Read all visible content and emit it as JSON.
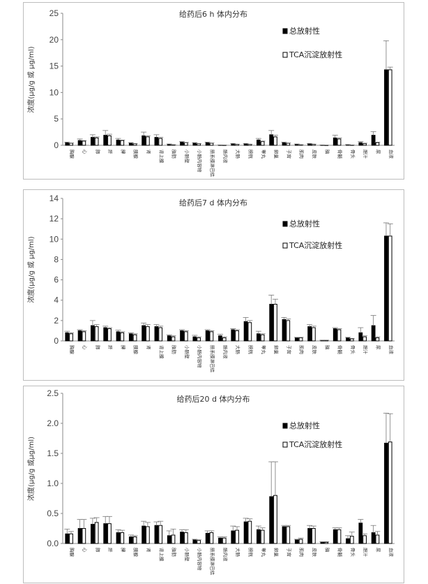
{
  "chart_data": [
    {
      "type": "bar",
      "title": "给药后6 h 体内分布",
      "ylabel": "浓度(μg/g 或 μg/ml)",
      "ylim": [
        0,
        25
      ],
      "yticks": [
        0,
        5,
        10,
        15,
        20,
        25
      ],
      "grid": false,
      "legend_position": "top-right",
      "categories": [
        "胸腺",
        "心",
        "肺",
        "肝",
        "脾",
        "胰腺",
        "肾",
        "肾上腺",
        "脂肪",
        "小肠壁",
        "小肠内容物",
        "肠系膜淋巴结",
        "肠内液",
        "大肠",
        "膀胱",
        "睾丸",
        "卵巢",
        "子宫",
        "肌肉",
        "皮肤",
        "脑",
        "骨髓",
        "骨头",
        "胆汁",
        "尿",
        "血液"
      ],
      "series": [
        {
          "name": "总放射性",
          "color": "#000000",
          "values": [
            0.5,
            0.9,
            1.5,
            1.9,
            1.0,
            0.4,
            1.8,
            1.5,
            0.2,
            0.6,
            0.4,
            0.5,
            0.05,
            0.3,
            0.3,
            1.0,
            2.0,
            0.5,
            0.2,
            0.3,
            0.05,
            1.4,
            0.1,
            0.5,
            1.9,
            14.3
          ],
          "errors": [
            0.1,
            0.3,
            0.5,
            0.9,
            0.3,
            0.1,
            0.7,
            0.5,
            0.05,
            0.1,
            0.1,
            0.1,
            0.02,
            0.05,
            0.05,
            0.3,
            0.8,
            0.1,
            0.05,
            0.05,
            0.02,
            0.5,
            0.05,
            0.2,
            0.7,
            5.5
          ]
        },
        {
          "name": "TCA沉淀放射性",
          "color": "#ffffff",
          "values": [
            0.4,
            0.8,
            1.4,
            1.8,
            0.9,
            0.3,
            1.6,
            1.3,
            0.1,
            0.5,
            0.3,
            0.4,
            0.03,
            0.2,
            0.2,
            0.7,
            1.6,
            0.4,
            0.1,
            0.2,
            0.02,
            1.2,
            0.05,
            0.3,
            0.5,
            14.3
          ],
          "errors": [
            0.05,
            0.1,
            0.2,
            0.3,
            0.1,
            0.05,
            0.2,
            0.2,
            0.02,
            0.05,
            0.05,
            0.05,
            0.01,
            0.02,
            0.02,
            0.1,
            0.3,
            0.05,
            0.02,
            0.03,
            0.01,
            0.2,
            0.02,
            0.1,
            0.1,
            0.5
          ]
        }
      ]
    },
    {
      "type": "bar",
      "title": "给药后7 d 体内分布",
      "ylabel": "浓度(μg/g 或 μg/ml)",
      "ylim": [
        0,
        14
      ],
      "yticks": [
        0,
        2,
        4,
        6,
        8,
        10,
        12,
        14
      ],
      "grid": false,
      "legend_position": "top-right",
      "categories": [
        "胸腺",
        "心",
        "肺",
        "肝",
        "脾",
        "胰腺",
        "肾",
        "肾上腺",
        "脂肪",
        "小肠壁",
        "小肠内容物",
        "肠系膜淋巴结",
        "肠内液",
        "大肠",
        "膀胱",
        "睾丸",
        "卵巢",
        "子宫",
        "肌肉",
        "皮肤",
        "脑",
        "骨髓",
        "骨头",
        "胆汁",
        "尿",
        "血液"
      ],
      "series": [
        {
          "name": "总放射性",
          "color": "#000000",
          "values": [
            0.8,
            1.0,
            1.5,
            1.3,
            0.9,
            0.7,
            1.5,
            1.4,
            0.5,
            1.0,
            0.4,
            1.0,
            0.5,
            1.1,
            1.9,
            0.7,
            3.6,
            2.1,
            0.3,
            1.4,
            0.05,
            1.2,
            0.3,
            0.8,
            1.5,
            10.3
          ],
          "errors": [
            0.15,
            0.1,
            0.5,
            0.15,
            0.15,
            0.1,
            0.25,
            0.2,
            0.1,
            0.1,
            0.15,
            0.1,
            0.15,
            0.1,
            0.4,
            0.25,
            0.9,
            0.2,
            0.05,
            0.2,
            0.02,
            0.1,
            0.05,
            0.5,
            1.0,
            1.3
          ]
        },
        {
          "name": "TCA沉淀放射性",
          "color": "#ffffff",
          "values": [
            0.7,
            0.9,
            1.4,
            1.2,
            0.8,
            0.6,
            1.4,
            1.3,
            0.4,
            0.9,
            0.3,
            0.9,
            0.3,
            1.0,
            1.8,
            0.6,
            3.6,
            2.0,
            0.3,
            1.3,
            0.05,
            1.1,
            0.2,
            0.4,
            0.3,
            10.3
          ],
          "errors": [
            0.1,
            0.1,
            0.2,
            0.1,
            0.1,
            0.1,
            0.2,
            0.15,
            0.1,
            0.1,
            0.1,
            0.1,
            0.1,
            0.1,
            0.2,
            0.1,
            0.5,
            0.15,
            0.05,
            0.15,
            0.02,
            0.1,
            0.05,
            0.1,
            0.1,
            1.2
          ]
        }
      ]
    },
    {
      "type": "bar",
      "title": "给药后20 d 体内分布",
      "ylabel": "浓度(μg/g 或μg/ml)",
      "ylim": [
        0,
        2.5
      ],
      "yticks": [
        "0.0",
        "0.5",
        "1.0",
        "1.5",
        "2.0",
        "2.5"
      ],
      "grid": false,
      "legend_position": "top-right",
      "categories": [
        "胸腺",
        "心",
        "肺",
        "肝",
        "脾",
        "胰腺",
        "肾",
        "肾上腺",
        "脂肪",
        "小肠壁",
        "小肠内容物",
        "肠系膜淋巴结",
        "肠内液",
        "大肠",
        "膀胱",
        "睾丸",
        "卵巢",
        "子宫",
        "肌肉",
        "皮肤",
        "脑",
        "骨髓",
        "骨头",
        "胆汁",
        "尿",
        "血液"
      ],
      "series": [
        {
          "name": "总放射性",
          "color": "#000000",
          "values": [
            0.16,
            0.25,
            0.32,
            0.33,
            0.18,
            0.11,
            0.29,
            0.3,
            0.13,
            0.19,
            0.06,
            0.17,
            0.09,
            0.21,
            0.36,
            0.23,
            0.78,
            0.28,
            0.06,
            0.25,
            0.02,
            0.23,
            0.08,
            0.34,
            0.18,
            1.67
          ],
          "errors": [
            0.08,
            0.15,
            0.1,
            0.12,
            0.05,
            0.03,
            0.08,
            0.06,
            0.08,
            0.04,
            0.01,
            0.04,
            0.02,
            0.08,
            0.06,
            0.06,
            0.58,
            0.02,
            0.01,
            0.05,
            0.01,
            0.03,
            0.05,
            0.06,
            0.12,
            0.5
          ]
        },
        {
          "name": "TCA沉淀放射性",
          "color": "#ffffff",
          "values": [
            0.16,
            0.25,
            0.35,
            0.33,
            0.18,
            0.11,
            0.28,
            0.3,
            0.14,
            0.18,
            0.05,
            0.18,
            0.09,
            0.22,
            0.37,
            0.22,
            0.8,
            0.28,
            0.07,
            0.25,
            0.02,
            0.23,
            0.12,
            0.13,
            0.14,
            1.69
          ],
          "errors": [
            0.04,
            0.15,
            0.08,
            0.12,
            0.04,
            0.02,
            0.07,
            0.07,
            0.1,
            0.05,
            0.01,
            0.03,
            0.02,
            0.06,
            0.04,
            0.04,
            0.56,
            0.02,
            0.02,
            0.04,
            0.01,
            0.03,
            0.07,
            0.03,
            0.06,
            0.47
          ]
        }
      ]
    }
  ]
}
